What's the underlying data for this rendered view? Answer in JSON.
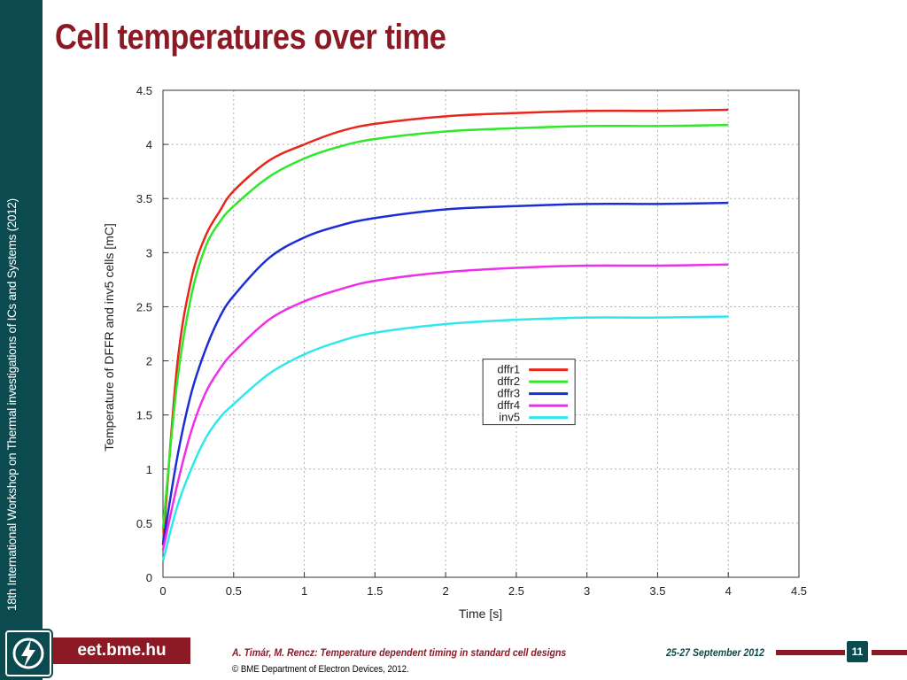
{
  "slide": {
    "title": "Cell temperatures over time",
    "sidebar_text": "18th International Workshop on Thermal investigations of ICs and Systems (2012)",
    "footer": {
      "url": "eet.bme.hu",
      "authors": "A. Timár, M. Rencz: Temperature dependent timing in standard cell designs",
      "copyright": "© BME Department of Electron Devices, 2012.",
      "date": "25-27 September 2012",
      "page": "11"
    },
    "logo_icon": "bme-eet-logo-icon",
    "colors": {
      "sidebar": "#0b4a4f",
      "accent": "#8b1a24"
    }
  },
  "chart_data": {
    "type": "line",
    "title": "",
    "xlabel": "Time [s]",
    "ylabel": "Temperature of DFFR and inv5 cells [mC]",
    "xlim": [
      0,
      4.5
    ],
    "ylim": [
      0,
      4.5
    ],
    "xticks": [
      "0",
      "0.5",
      "1",
      "1.5",
      "2",
      "2.5",
      "3",
      "3.5",
      "4",
      "4.5"
    ],
    "yticks": [
      "0",
      "0.5",
      "1",
      "1.5",
      "2",
      "2.5",
      "3",
      "3.5",
      "4",
      "4.5"
    ],
    "grid": true,
    "legend_position": "center-right",
    "x": [
      0,
      0.1,
      0.2,
      0.3,
      0.4,
      0.5,
      0.75,
      1,
      1.25,
      1.5,
      2,
      2.5,
      3,
      3.5,
      4
    ],
    "series": [
      {
        "name": "dffr1",
        "color": "#e8261a",
        "values": [
          0.3,
          1.95,
          2.75,
          3.15,
          3.38,
          3.57,
          3.85,
          4.0,
          4.12,
          4.19,
          4.26,
          4.29,
          4.31,
          4.31,
          4.32
        ]
      },
      {
        "name": "dffr2",
        "color": "#2ee82a",
        "values": [
          0.45,
          1.8,
          2.6,
          3.05,
          3.28,
          3.43,
          3.7,
          3.87,
          3.98,
          4.05,
          4.12,
          4.15,
          4.17,
          4.17,
          4.18
        ]
      },
      {
        "name": "dffr3",
        "color": "#1b2ed6",
        "values": [
          0.3,
          1.1,
          1.7,
          2.1,
          2.4,
          2.6,
          2.95,
          3.14,
          3.25,
          3.32,
          3.4,
          3.43,
          3.45,
          3.45,
          3.46
        ]
      },
      {
        "name": "dffr4",
        "color": "#ee2ee8",
        "values": [
          0.25,
          0.85,
          1.35,
          1.7,
          1.92,
          2.08,
          2.38,
          2.55,
          2.66,
          2.74,
          2.82,
          2.86,
          2.88,
          2.88,
          2.89
        ]
      },
      {
        "name": "inv5",
        "color": "#2ee8ee",
        "values": [
          0.15,
          0.65,
          1.0,
          1.28,
          1.47,
          1.6,
          1.88,
          2.06,
          2.18,
          2.26,
          2.34,
          2.38,
          2.4,
          2.4,
          2.41
        ]
      }
    ]
  }
}
